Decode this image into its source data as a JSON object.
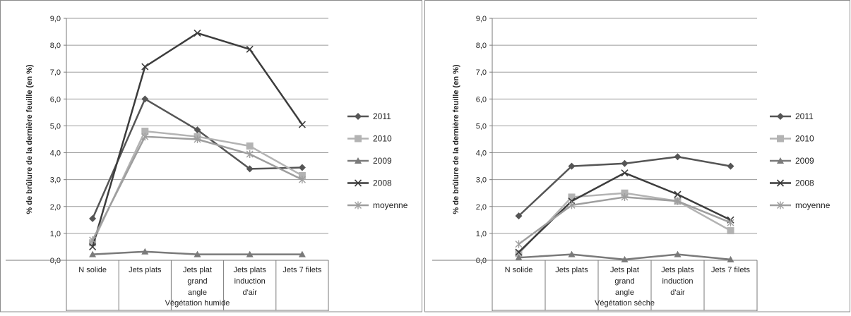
{
  "chart_data": [
    {
      "type": "line",
      "ylabel": "% de brûlure de la dernière feuille (en %)",
      "group_label": "Végétation humide",
      "categories": [
        "N solide",
        "Jets plats",
        "Jets plat grand angle",
        "Jets plats induction d'air",
        "Jets 7 filets"
      ],
      "category_lines": [
        [
          "N solide"
        ],
        [
          "Jets plats"
        ],
        [
          "Jets plat",
          "grand",
          "angle"
        ],
        [
          "Jets plats",
          "induction",
          "d'air"
        ],
        [
          "Jets 7 filets"
        ]
      ],
      "ylim": [
        0,
        9
      ],
      "yticks": [
        "0,0",
        "1,0",
        "2,0",
        "3,0",
        "4,0",
        "5,0",
        "6,0",
        "7,0",
        "8,0",
        "9,0"
      ],
      "grid": true,
      "legend_position": "right",
      "series": [
        {
          "name": "2011",
          "values": [
            1.55,
            6.0,
            4.85,
            3.4,
            3.45
          ],
          "color": "#555555",
          "marker": "diamond"
        },
        {
          "name": "2010",
          "values": [
            0.65,
            4.8,
            4.6,
            4.25,
            3.15
          ],
          "color": "#b3b3b3",
          "marker": "square"
        },
        {
          "name": "2009",
          "values": [
            0.22,
            0.32,
            0.22,
            0.22,
            0.22
          ],
          "color": "#7a7a7a",
          "marker": "triangle"
        },
        {
          "name": "2008",
          "values": [
            0.5,
            7.2,
            8.45,
            7.85,
            5.05
          ],
          "color": "#3c3c3c",
          "marker": "x"
        },
        {
          "name": "moyenne",
          "values": [
            0.75,
            4.6,
            4.5,
            3.95,
            3.0
          ],
          "color": "#9e9e9e",
          "marker": "star"
        }
      ]
    },
    {
      "type": "line",
      "ylabel": "% de brûlure de la dernière feuille (en %)",
      "group_label": "Végétation sèche",
      "categories": [
        "N solide",
        "Jets plats",
        "Jets plat grand angle",
        "Jets plats induction d'air",
        "Jets 7 filets"
      ],
      "category_lines": [
        [
          "N solide"
        ],
        [
          "Jets plats"
        ],
        [
          "Jets plat",
          "grand",
          "angle"
        ],
        [
          "Jets plats",
          "induction",
          "d'air"
        ],
        [
          "Jets 7 filets"
        ]
      ],
      "ylim": [
        0,
        9
      ],
      "yticks": [
        "0,0",
        "1,0",
        "2,0",
        "3,0",
        "4,0",
        "5,0",
        "6,0",
        "7,0",
        "8,0",
        "9,0"
      ],
      "grid": true,
      "legend_position": "right",
      "series": [
        {
          "name": "2011",
          "values": [
            1.65,
            3.5,
            3.6,
            3.85,
            3.5
          ],
          "color": "#555555",
          "marker": "diamond"
        },
        {
          "name": "2010",
          "values": [
            0.25,
            2.35,
            2.5,
            2.2,
            1.1
          ],
          "color": "#b3b3b3",
          "marker": "square"
        },
        {
          "name": "2009",
          "values": [
            0.1,
            0.22,
            0.03,
            0.22,
            0.03
          ],
          "color": "#7a7a7a",
          "marker": "triangle"
        },
        {
          "name": "2008",
          "values": [
            0.3,
            2.2,
            3.25,
            2.45,
            1.5
          ],
          "color": "#3c3c3c",
          "marker": "x"
        },
        {
          "name": "moyenne",
          "values": [
            0.6,
            2.05,
            2.35,
            2.2,
            1.4
          ],
          "color": "#9e9e9e",
          "marker": "star"
        }
      ]
    }
  ]
}
